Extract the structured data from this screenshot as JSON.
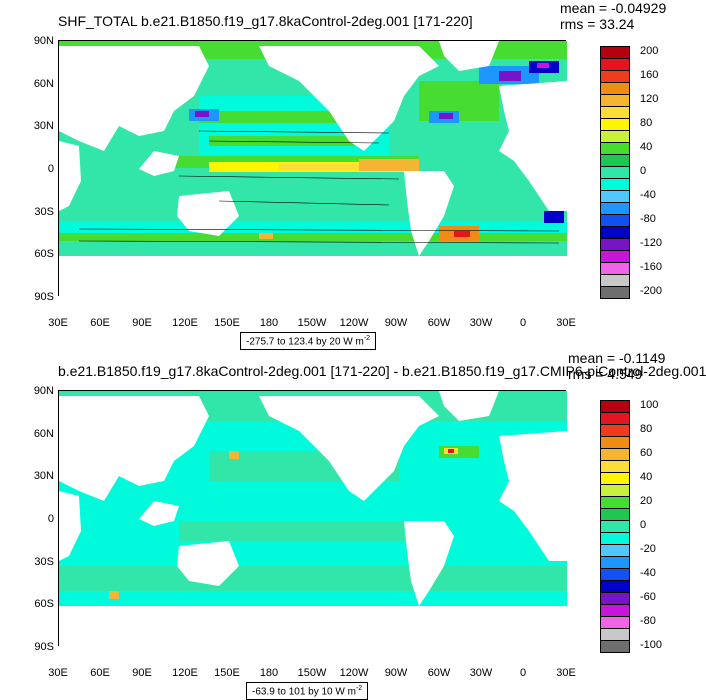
{
  "panels": [
    {
      "title": "SHF_TOTAL b.e21.B1850.f19_g17.8kaControl-2deg.001 [171-220]",
      "stats": {
        "mean": "mean = -0.04929",
        "rms": "rms = 33.24"
      },
      "range_label": "-275.7 to 123.4 by 20  W m",
      "units_exp": "-2",
      "colorbar": {
        "labels": [
          "200",
          "160",
          "120",
          "80",
          "40",
          "0",
          "-40",
          "-80",
          "-120",
          "-160",
          "-200"
        ],
        "colors": [
          "#b4000f",
          "#e6141e",
          "#f03c1e",
          "#f08c14",
          "#f5b432",
          "#fadc3c",
          "#fff500",
          "#c8f03c",
          "#46dc32",
          "#1ec850",
          "#32e6aa",
          "#00fadc",
          "#50c8ff",
          "#1e96ff",
          "#1450f0",
          "#0000c8",
          "#7814c8",
          "#c814dc",
          "#f064e6",
          "#c8c8c8",
          "#6e6e6e"
        ]
      }
    },
    {
      "title": "b.e21.B1850.f19_g17.8kaControl-2deg.001 [171-220] - b.e21.B1850.f19_g17.CMIP6-piControl-2deg.001",
      "stats": {
        "mean": "mean = -0.1149",
        "rms": "rms = 4.549"
      },
      "range_label": "-63.9 to 101 by 10  W m",
      "units_exp": "-2",
      "colorbar": {
        "labels": [
          "100",
          "80",
          "60",
          "40",
          "20",
          "0",
          "-20",
          "-40",
          "-60",
          "-80",
          "-100"
        ],
        "colors": [
          "#b4000f",
          "#e6141e",
          "#f03c1e",
          "#f08c14",
          "#f5b432",
          "#fadc3c",
          "#fff500",
          "#c8f03c",
          "#46dc32",
          "#1ec850",
          "#32e6aa",
          "#00fadc",
          "#50c8ff",
          "#1e96ff",
          "#1450f0",
          "#0000c8",
          "#7814c8",
          "#c814dc",
          "#f064e6",
          "#c8c8c8",
          "#6e6e6e"
        ]
      }
    }
  ],
  "axes": {
    "lat_labels": [
      "90N",
      "60N",
      "30N",
      "0",
      "30S",
      "60S",
      "90S"
    ],
    "lon_labels": [
      "30E",
      "60E",
      "90E",
      "120E",
      "150E",
      "180",
      "150W",
      "120W",
      "90W",
      "60W",
      "30W",
      "0",
      "30E"
    ]
  }
}
